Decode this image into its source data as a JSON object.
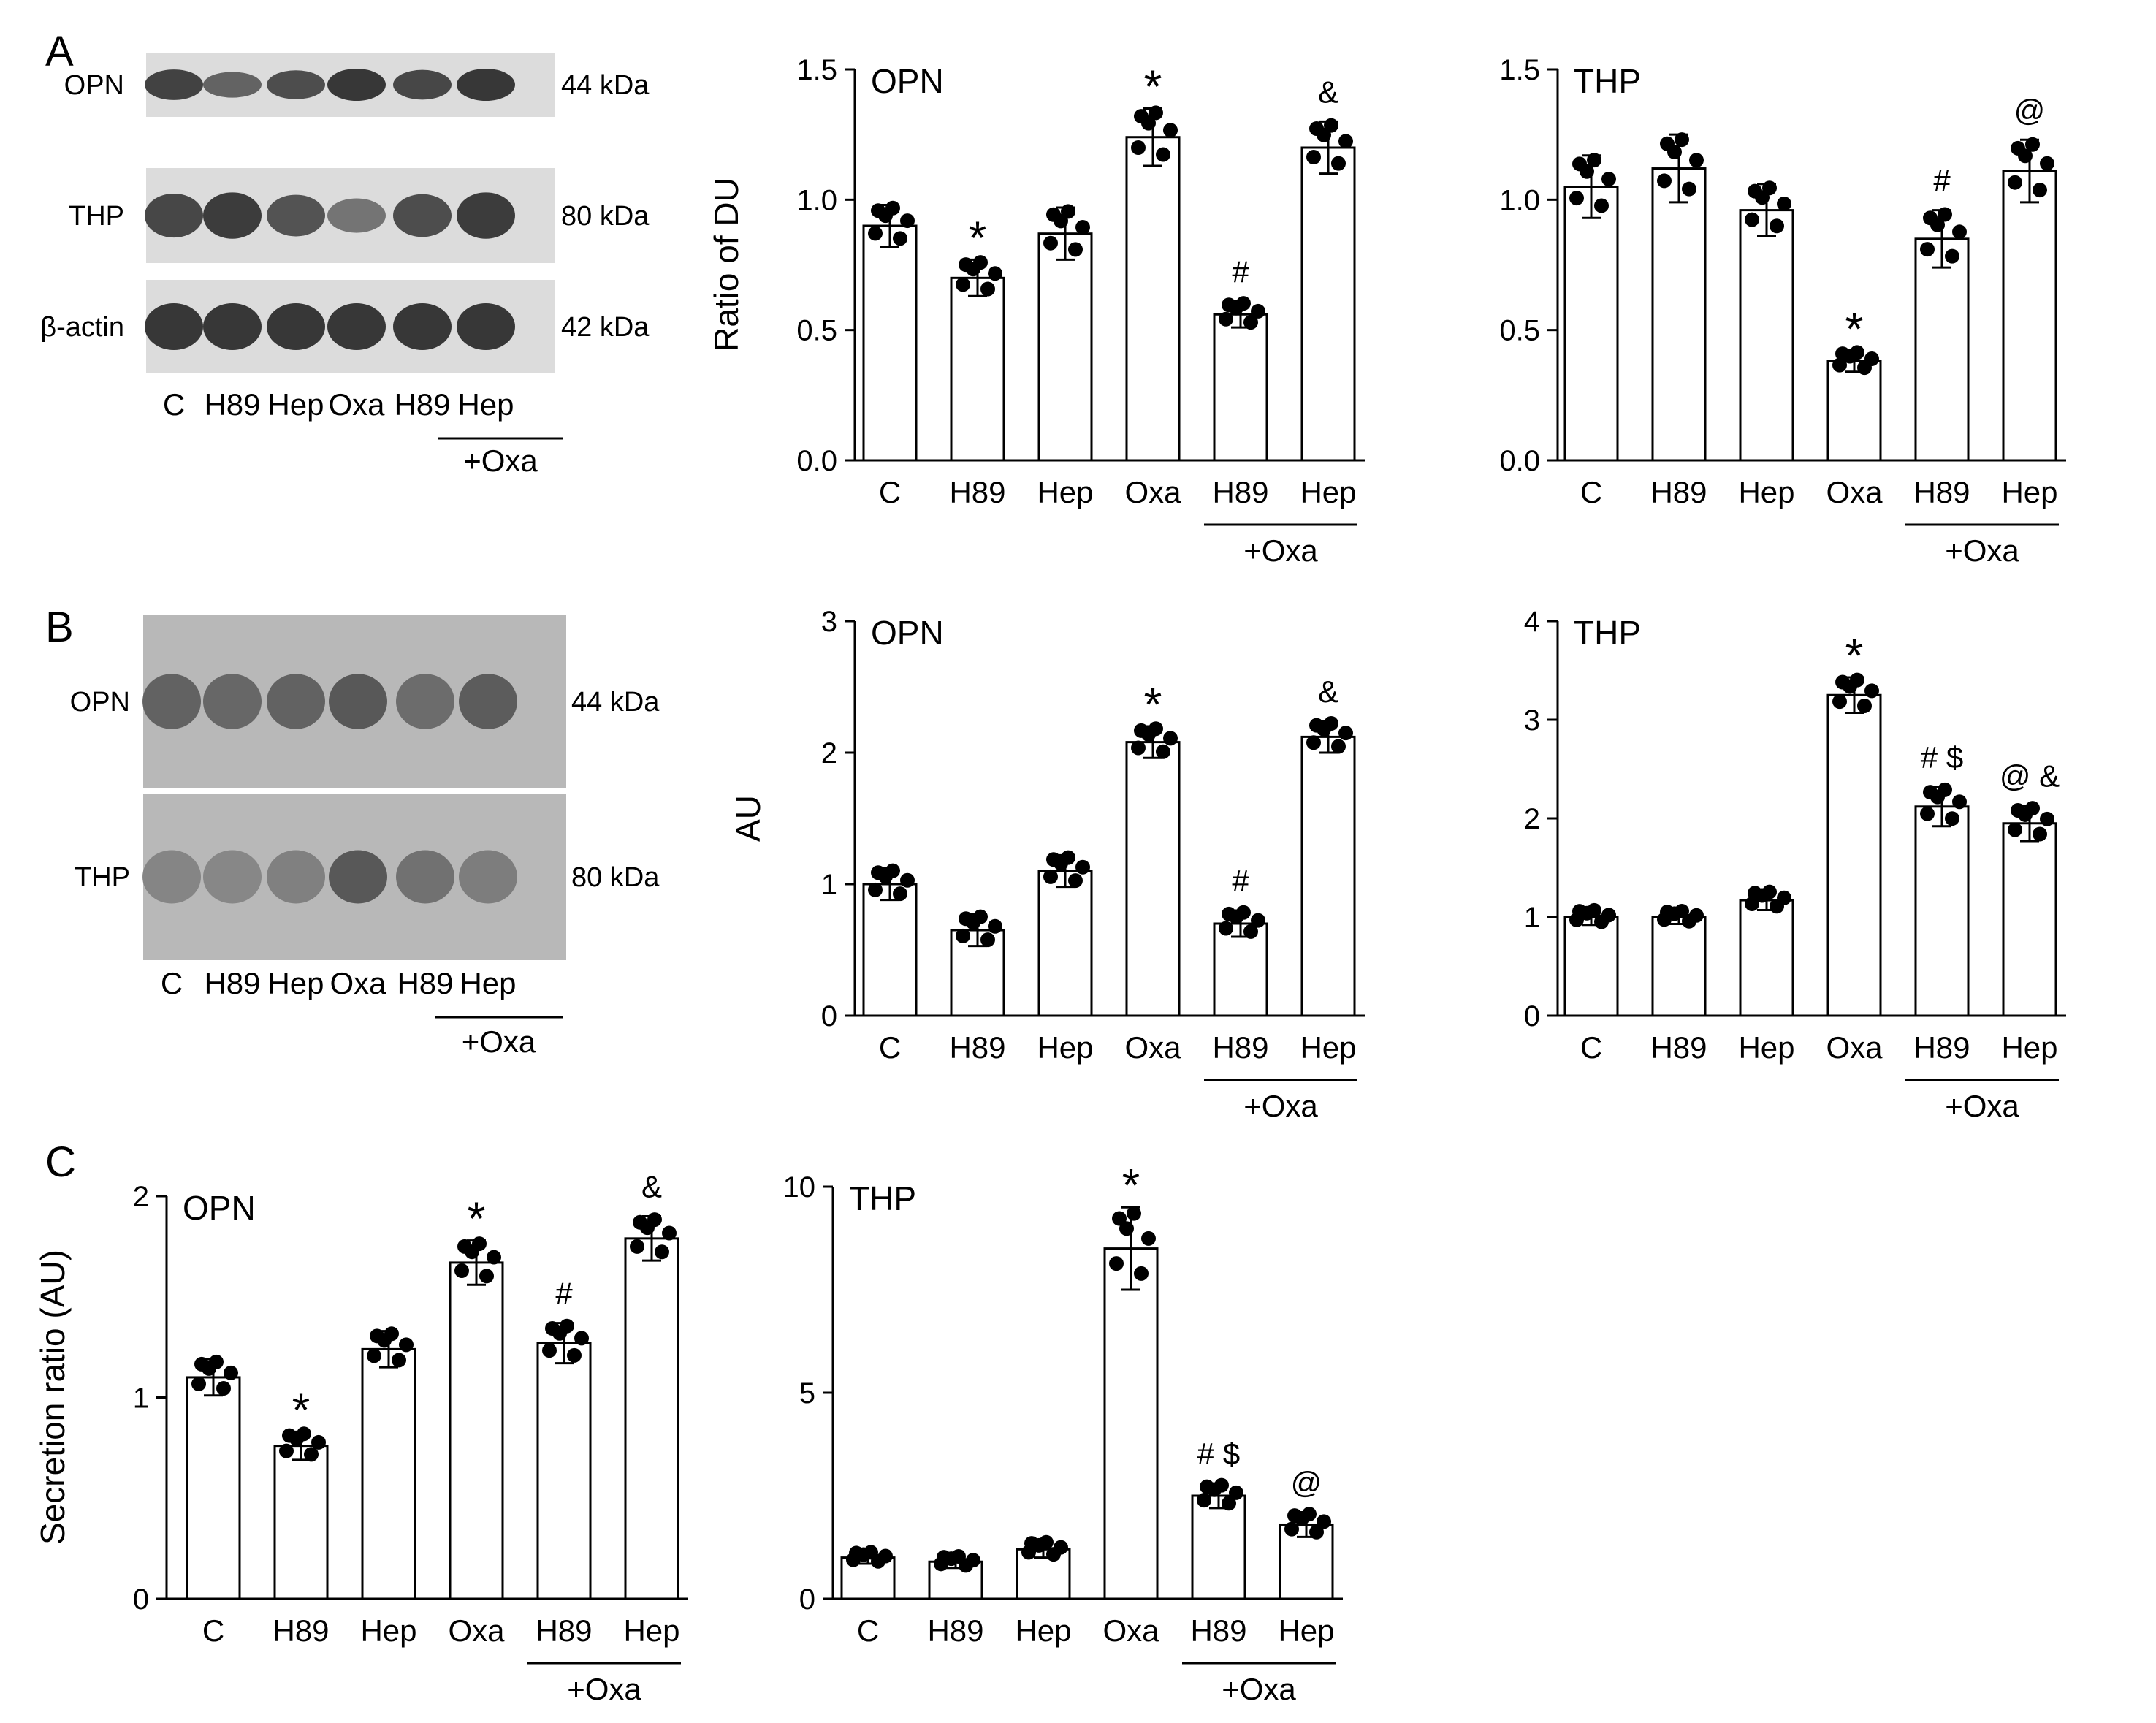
{
  "panels": [
    {
      "letter": "A"
    },
    {
      "letter": "B"
    },
    {
      "letter": "C"
    }
  ],
  "blots": [
    {
      "lanes": [
        "C",
        "H89",
        "Hep",
        "Oxa",
        "H89",
        "Hep"
      ],
      "group_label": "+Oxa",
      "bands": [
        {
          "label": "OPN",
          "size": "44 kDa",
          "intensity": [
            0.9,
            0.6,
            0.8,
            1.0,
            0.85,
            1.0
          ]
        },
        {
          "label": "THP",
          "size": "80 kDa",
          "intensity": [
            0.85,
            0.95,
            0.75,
            0.45,
            0.8,
            0.95
          ]
        },
        {
          "label": "β-actin",
          "size": "42 kDa",
          "intensity": [
            1,
            1,
            1,
            1,
            1,
            1
          ]
        }
      ]
    },
    {
      "lanes": [
        "C",
        "H89",
        "Hep",
        "Oxa",
        "H89",
        "Hep"
      ],
      "group_label": "+Oxa",
      "bands": [
        {
          "label": "OPN",
          "size": "44 kDa",
          "intensity": [
            0.55,
            0.5,
            0.55,
            0.65,
            0.45,
            0.6
          ]
        },
        {
          "label": "THP",
          "size": "80 kDa",
          "intensity": [
            0.2,
            0.18,
            0.25,
            0.65,
            0.4,
            0.28
          ]
        }
      ]
    }
  ],
  "chart_data": [
    {
      "type": "bar",
      "title": "OPN",
      "ylabel": "Ratio of DU",
      "ylim": [
        0,
        1.5
      ],
      "yticks": [
        "0.0",
        "0.5",
        "1.0",
        "1.5"
      ],
      "categories": [
        "C",
        "H89",
        "Hep",
        "Oxa",
        "H89",
        "Hep"
      ],
      "group_label": "+Oxa",
      "values": [
        0.9,
        0.7,
        0.87,
        1.24,
        0.56,
        1.2
      ],
      "errors": [
        0.08,
        0.07,
        0.1,
        0.11,
        0.05,
        0.1
      ],
      "annotations": [
        "",
        "*",
        "",
        "*",
        "#",
        "&"
      ]
    },
    {
      "type": "bar",
      "title": "THP",
      "ylabel": "",
      "ylim": [
        0,
        1.5
      ],
      "yticks": [
        "0.0",
        "0.5",
        "1.0",
        "1.5"
      ],
      "categories": [
        "C",
        "H89",
        "Hep",
        "Oxa",
        "H89",
        "Hep"
      ],
      "group_label": "+Oxa",
      "values": [
        1.05,
        1.12,
        0.96,
        0.38,
        0.85,
        1.11
      ],
      "errors": [
        0.12,
        0.13,
        0.1,
        0.04,
        0.11,
        0.12
      ],
      "annotations": [
        "",
        "",
        "",
        "*",
        "#",
        "@"
      ]
    },
    {
      "type": "bar",
      "title": "OPN",
      "ylabel": "AU",
      "ylim": [
        0,
        3
      ],
      "yticks": [
        "0",
        "1",
        "2",
        "3"
      ],
      "categories": [
        "C",
        "H89",
        "Hep",
        "Oxa",
        "H89",
        "Hep"
      ],
      "group_label": "+Oxa",
      "values": [
        1.0,
        0.65,
        1.1,
        2.08,
        0.7,
        2.12
      ],
      "errors": [
        0.12,
        0.12,
        0.12,
        0.12,
        0.1,
        0.12
      ],
      "annotations": [
        "",
        "",
        "",
        "*",
        "#",
        "&"
      ]
    },
    {
      "type": "bar",
      "title": "THP",
      "ylabel": "",
      "ylim": [
        0,
        4
      ],
      "yticks": [
        "0",
        "1",
        "2",
        "3",
        "4"
      ],
      "categories": [
        "C",
        "H89",
        "Hep",
        "Oxa",
        "H89",
        "Hep"
      ],
      "group_label": "+Oxa",
      "values": [
        1.0,
        1.0,
        1.17,
        3.25,
        2.12,
        1.95
      ],
      "errors": [
        0.08,
        0.07,
        0.1,
        0.18,
        0.2,
        0.18
      ],
      "annotations": [
        "",
        "",
        "",
        "*",
        "# $",
        "@ &"
      ]
    },
    {
      "type": "bar",
      "title": "OPN",
      "ylabel": "Secretion ratio (AU)",
      "ylim": [
        0,
        2
      ],
      "yticks": [
        "0",
        "1",
        "2"
      ],
      "categories": [
        "C",
        "H89",
        "Hep",
        "Oxa",
        "H89",
        "Hep"
      ],
      "group_label": "+Oxa",
      "values": [
        1.1,
        0.76,
        1.24,
        1.67,
        1.27,
        1.79
      ],
      "errors": [
        0.09,
        0.07,
        0.09,
        0.11,
        0.1,
        0.11
      ],
      "annotations": [
        "",
        "*",
        "",
        "*",
        "#",
        "&"
      ]
    },
    {
      "type": "bar",
      "title": "THP",
      "ylabel": "",
      "ylim": [
        0,
        10
      ],
      "yticks": [
        "0",
        "5",
        "10"
      ],
      "categories": [
        "C",
        "H89",
        "Hep",
        "Oxa",
        "H89",
        "Hep"
      ],
      "group_label": "+Oxa",
      "values": [
        1.0,
        0.9,
        1.2,
        8.5,
        2.5,
        1.8
      ],
      "errors": [
        0.15,
        0.15,
        0.2,
        1.0,
        0.3,
        0.3
      ],
      "annotations": [
        "",
        "",
        "",
        "*",
        "# $",
        "@"
      ]
    }
  ]
}
